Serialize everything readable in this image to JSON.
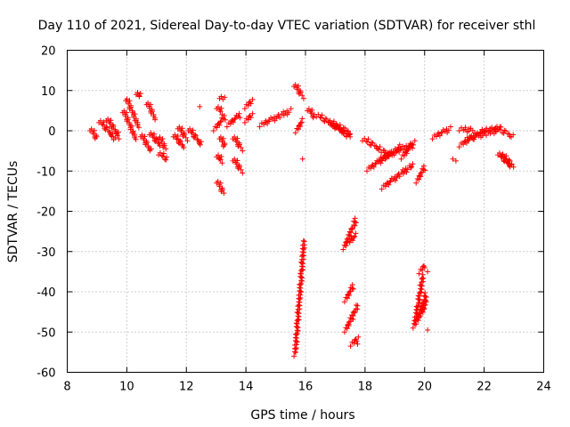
{
  "chart_data": {
    "type": "scatter",
    "title": "Day 110 of 2021, Sidereal Day-to-day VTEC variation (SDTVAR) for receiver sthl",
    "xlabel": "GPS time / hours",
    "ylabel": "SDTVAR / TECUs",
    "xlim": [
      8,
      24
    ],
    "ylim": [
      -60,
      20
    ],
    "xticks": [
      "8",
      "10",
      "12",
      "14",
      "16",
      "18",
      "20",
      "22",
      "24"
    ],
    "yticks": [
      "20",
      "10",
      "0",
      "-10",
      "-20",
      "-30",
      "-40",
      "-50",
      "-60"
    ],
    "grid": true,
    "marker": "+",
    "series_color": "#ff0000",
    "segments": [
      {
        "x0": 8.8,
        "x1": 9.0,
        "y0": 0.5,
        "y1": -2.0
      },
      {
        "x0": 9.1,
        "x1": 9.6,
        "y0": 2.5,
        "y1": -2.0
      },
      {
        "x0": 9.35,
        "x1": 9.75,
        "y0": 3.0,
        "y1": -1.5
      },
      {
        "x0": 9.9,
        "x1": 10.3,
        "y0": 5.0,
        "y1": -2.0
      },
      {
        "x0": 10.0,
        "x1": 10.4,
        "y0": 8.0,
        "y1": 1.0
      },
      {
        "x0": 10.35,
        "x1": 10.45,
        "y0": 9.5,
        "y1": 8.5
      },
      {
        "x0": 10.5,
        "x1": 10.8,
        "y0": -1.0,
        "y1": -5.0
      },
      {
        "x0": 10.7,
        "x1": 10.95,
        "y0": 7.0,
        "y1": 3.0
      },
      {
        "x0": 10.8,
        "x1": 11.1,
        "y0": -0.5,
        "y1": -3.5
      },
      {
        "x0": 11.1,
        "x1": 11.3,
        "y0": -1.5,
        "y1": -4.5
      },
      {
        "x0": 11.1,
        "x1": 11.35,
        "y0": -5.5,
        "y1": -7.0
      },
      {
        "x0": 11.6,
        "x1": 11.9,
        "y0": -1.0,
        "y1": -4.0
      },
      {
        "x0": 11.75,
        "x1": 12.0,
        "y0": 1.0,
        "y1": -2.0
      },
      {
        "x0": 12.1,
        "x1": 12.5,
        "y0": 0.5,
        "y1": -3.5
      },
      {
        "x0": 12.95,
        "x1": 13.3,
        "y0": 0.5,
        "y1": 3.5
      },
      {
        "x0": 13.05,
        "x1": 13.2,
        "y0": 6.0,
        "y1": 4.5
      },
      {
        "x0": 13.15,
        "x1": 13.25,
        "y0": 8.5,
        "y1": 7.8
      },
      {
        "x0": 13.15,
        "x1": 13.3,
        "y0": -1.5,
        "y1": -4.0
      },
      {
        "x0": 13.05,
        "x1": 13.2,
        "y0": -6.0,
        "y1": -7.5
      },
      {
        "x0": 13.05,
        "x1": 13.25,
        "y0": -12.5,
        "y1": -15.5
      },
      {
        "x0": 13.4,
        "x1": 13.8,
        "y0": 1.5,
        "y1": 4.0
      },
      {
        "x0": 13.6,
        "x1": 13.85,
        "y0": -1.5,
        "y1": -4.5
      },
      {
        "x0": 13.6,
        "x1": 13.85,
        "y0": -7.0,
        "y1": -10.0
      },
      {
        "x0": 14.0,
        "x1": 14.2,
        "y0": 2.5,
        "y1": 4.0
      },
      {
        "x0": 14.0,
        "x1": 14.2,
        "y0": 6.0,
        "y1": 7.5
      },
      {
        "x0": 14.5,
        "x1": 15.5,
        "y0": 1.5,
        "y1": 5.0
      },
      {
        "x0": 15.65,
        "x1": 15.9,
        "y0": 11.5,
        "y1": 8.5
      },
      {
        "x0": 15.7,
        "x1": 15.9,
        "y0": 0.0,
        "y1": 2.5
      },
      {
        "x0": 16.1,
        "x1": 16.3,
        "y0": 5.5,
        "y1": 3.5
      },
      {
        "x0": 16.4,
        "x1": 17.4,
        "y0": 4.0,
        "y1": -1.0
      },
      {
        "x0": 16.8,
        "x1": 17.5,
        "y0": 2.5,
        "y1": -1.5
      },
      {
        "x0": 17.0,
        "x1": 17.5,
        "y0": 1.5,
        "y1": -0.5
      },
      {
        "x0": 15.65,
        "x1": 15.95,
        "y0": -55.5,
        "y1": -27.5
      },
      {
        "x0": 17.3,
        "x1": 17.7,
        "y0": -29.0,
        "y1": -22.0
      },
      {
        "x0": 17.4,
        "x1": 17.7,
        "y0": -28.0,
        "y1": -26.0
      },
      {
        "x0": 17.35,
        "x1": 17.6,
        "y0": -42.0,
        "y1": -38.5
      },
      {
        "x0": 17.35,
        "x1": 17.75,
        "y0": -49.5,
        "y1": -43.5
      },
      {
        "x0": 17.55,
        "x1": 17.75,
        "y0": -53.0,
        "y1": -51.5
      },
      {
        "x0": 17.95,
        "x1": 18.8,
        "y0": -2.0,
        "y1": -6.0
      },
      {
        "x0": 18.1,
        "x1": 19.2,
        "y0": -9.5,
        "y1": -4.0
      },
      {
        "x0": 18.5,
        "x1": 19.55,
        "y0": -7.0,
        "y1": -3.5
      },
      {
        "x0": 18.6,
        "x1": 19.6,
        "y0": -14.0,
        "y1": -8.5
      },
      {
        "x0": 19.25,
        "x1": 19.65,
        "y0": -6.5,
        "y1": -3.0
      },
      {
        "x0": 19.75,
        "x1": 20.0,
        "y0": -12.5,
        "y1": -9.0
      },
      {
        "x0": 19.65,
        "x1": 19.95,
        "y0": -48.5,
        "y1": -36.0
      },
      {
        "x0": 19.85,
        "x1": 20.0,
        "y0": -35.0,
        "y1": -33.5
      },
      {
        "x0": 19.75,
        "x1": 20.05,
        "y0": -47.5,
        "y1": -40.5
      },
      {
        "x0": 19.9,
        "x1": 20.05,
        "y0": -45.5,
        "y1": -42.5
      },
      {
        "x0": 20.3,
        "x1": 20.85,
        "y0": -1.5,
        "y1": 0.5
      },
      {
        "x0": 21.2,
        "x1": 21.65,
        "y0": 0.5,
        "y1": 0.0
      },
      {
        "x0": 21.2,
        "x1": 22.0,
        "y0": -3.5,
        "y1": 0.0
      },
      {
        "x0": 21.4,
        "x1": 22.4,
        "y0": -2.0,
        "y1": 0.0
      },
      {
        "x0": 21.9,
        "x1": 22.5,
        "y0": 0.0,
        "y1": 0.5
      },
      {
        "x0": 22.4,
        "x1": 22.95,
        "y0": 1.0,
        "y1": -1.5
      },
      {
        "x0": 22.5,
        "x1": 22.9,
        "y0": -5.5,
        "y1": -9.0
      },
      {
        "x0": 22.6,
        "x1": 22.95,
        "y0": -6.0,
        "y1": -8.5
      }
    ],
    "points": [
      {
        "x": 12.45,
        "y": 6.0
      },
      {
        "x": 15.9,
        "y": -7.0
      },
      {
        "x": 20.1,
        "y": -35.0
      },
      {
        "x": 20.1,
        "y": -49.5
      },
      {
        "x": 20.95,
        "y": -7.0
      },
      {
        "x": 21.05,
        "y": -7.5
      },
      {
        "x": 17.75,
        "y": -53.0
      },
      {
        "x": 13.1,
        "y": -7.0
      }
    ]
  }
}
